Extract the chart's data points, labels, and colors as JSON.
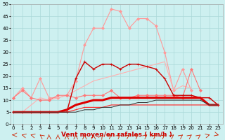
{
  "background_color": "#cdf0f0",
  "grid_color": "#aad8d8",
  "xlabel": "Vent moyen/en rafales ( km/h )",
  "ylim": [
    0,
    50
  ],
  "yticks": [
    0,
    5,
    10,
    15,
    20,
    25,
    30,
    35,
    40,
    45,
    50
  ],
  "xlim": [
    -0.3,
    23.5
  ],
  "series": [
    {
      "color": "#ff9999",
      "linewidth": 0.8,
      "marker": "D",
      "markersize": 2.0,
      "values": [
        11,
        15,
        11,
        19,
        11,
        11,
        12,
        18,
        33,
        40,
        40,
        48,
        47,
        40,
        44,
        44,
        41,
        30,
        14,
        23,
        14,
        null,
        null,
        null
      ]
    },
    {
      "color": "#ffb0b0",
      "linewidth": 0.8,
      "marker": null,
      "markersize": 0,
      "values": [
        5,
        5,
        8,
        11,
        10,
        11,
        12,
        14,
        16,
        18,
        19,
        20,
        21,
        22,
        23,
        24,
        25,
        26,
        14,
        16,
        15,
        null,
        null,
        null
      ]
    },
    {
      "color": "#ff7777",
      "linewidth": 0.8,
      "marker": "D",
      "markersize": 2.0,
      "values": [
        11,
        14,
        11,
        10,
        10,
        12,
        12,
        11,
        12,
        12,
        12,
        14,
        11,
        11,
        12,
        12,
        12,
        12,
        12,
        11,
        23,
        14,
        null,
        null
      ]
    },
    {
      "color": "#cc0000",
      "linewidth": 1.0,
      "marker": "+",
      "markersize": 3.0,
      "values": [
        5,
        5,
        5,
        5,
        5,
        5,
        5,
        19,
        26,
        23,
        25,
        25,
        23,
        25,
        25,
        24,
        23,
        19,
        12,
        12,
        12,
        11,
        11,
        8
      ]
    },
    {
      "color": "#dd0000",
      "linewidth": 2.2,
      "marker": null,
      "markersize": 0,
      "values": [
        5,
        5,
        5,
        5,
        5,
        5,
        6,
        8,
        9,
        10,
        10,
        11,
        11,
        11,
        11,
        11,
        11,
        11,
        11,
        11,
        11,
        11,
        8,
        8
      ]
    },
    {
      "color": "#ff2222",
      "linewidth": 0.8,
      "marker": null,
      "markersize": 0,
      "values": [
        5,
        5,
        5,
        5,
        5,
        5,
        5,
        6,
        7,
        7,
        7,
        8,
        8,
        8,
        8,
        8,
        8,
        8,
        8,
        8,
        8,
        8,
        8,
        8
      ]
    },
    {
      "color": "#333333",
      "linewidth": 0.7,
      "marker": null,
      "markersize": 0,
      "values": [
        5,
        5,
        5,
        5,
        5,
        5,
        5,
        5,
        6,
        6,
        7,
        7,
        8,
        8,
        9,
        9,
        10,
        10,
        10,
        10,
        10,
        10,
        8,
        8
      ]
    }
  ],
  "arrow_color": "#cc2200",
  "xlabel_color": "#cc0000",
  "xlabel_fontsize": 6.5,
  "tick_fontsize": 5.0
}
